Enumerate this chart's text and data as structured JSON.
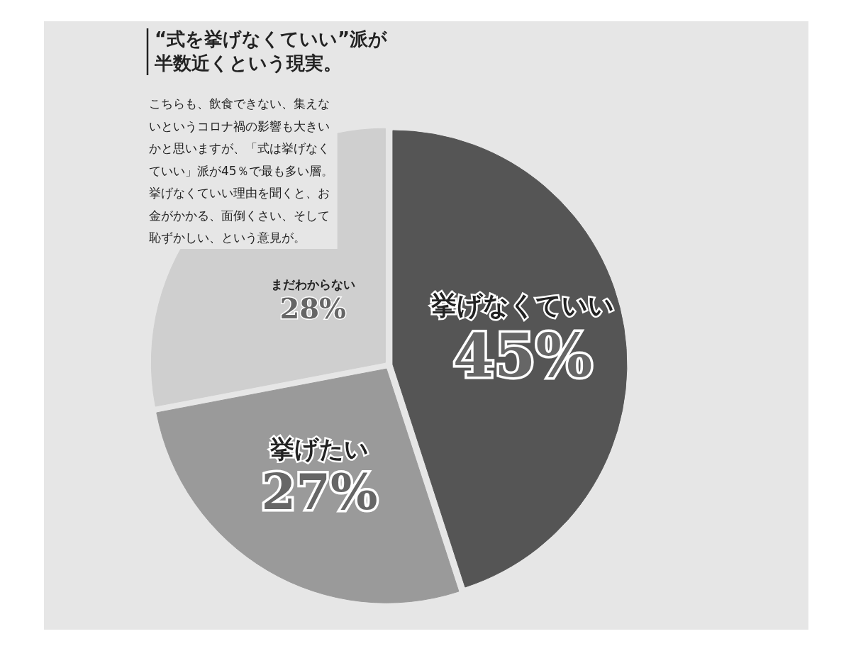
{
  "chart_data": {
    "type": "pie",
    "title": "“式を挙げなくていい”派が半数近くという現実。",
    "subtitle": "こちらも、飲食できない、集えないというコロナ禍の影響も大きいかと思いますが、「式は挙げなくていい」派が45％で最も多い層。挙げなくていい理由を聞くと、お金がかかる、面倒くさい、そして恥ずかしい、という意見が。",
    "categories": [
      "挙げなくていい",
      "挙げたい",
      "まだわからない"
    ],
    "values": [
      45,
      27,
      28
    ],
    "value_labels": [
      "45%",
      "27%",
      "28%"
    ],
    "colors": [
      "#555555",
      "#9a9a9a",
      "#cfcfcf"
    ]
  }
}
